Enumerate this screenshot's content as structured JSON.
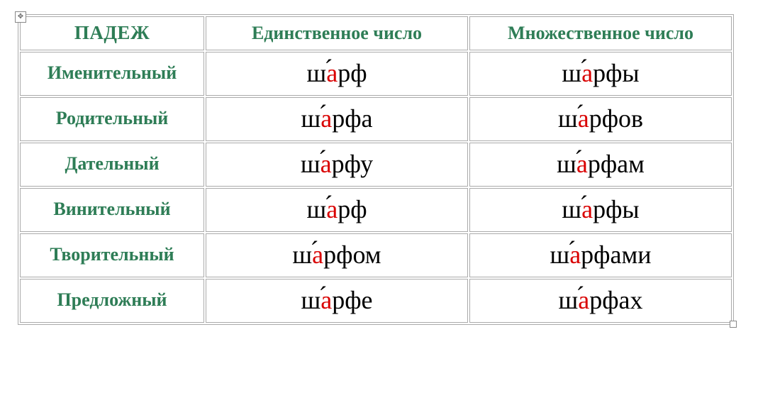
{
  "colors": {
    "header_text": "#2e7d56",
    "stress_letter": "#d90000",
    "word_text": "#000000",
    "border": "#aaaaaa",
    "background": "#ffffff"
  },
  "fonts": {
    "family": "Times New Roman",
    "header_size_pt": 20,
    "case_label_size_pt": 20,
    "word_size_pt": 28
  },
  "headers": {
    "case": "ПАДЕЖ",
    "singular": "Единственное число",
    "plural": "Множественное число"
  },
  "rows": [
    {
      "case": "Именительный",
      "sing": {
        "pre": "ш",
        "stress": "а",
        "post": "рф"
      },
      "plur": {
        "pre": "ш",
        "stress": "а",
        "post": "рфы"
      }
    },
    {
      "case": "Родительный",
      "sing": {
        "pre": "ш",
        "stress": "а",
        "post": "рфа"
      },
      "plur": {
        "pre": "ш",
        "stress": "а",
        "post": "рфов"
      }
    },
    {
      "case": "Дательный",
      "sing": {
        "pre": "ш",
        "stress": "а",
        "post": "рфу"
      },
      "plur": {
        "pre": "ш",
        "stress": "а",
        "post": "рфам"
      }
    },
    {
      "case": "Винительный",
      "sing": {
        "pre": "ш",
        "stress": "а",
        "post": "рф"
      },
      "plur": {
        "pre": "ш",
        "stress": "а",
        "post": "рфы"
      }
    },
    {
      "case": "Творительный",
      "sing": {
        "pre": "ш",
        "stress": "а",
        "post": "рфом"
      },
      "plur": {
        "pre": "ш",
        "stress": "а",
        "post": "рфами"
      }
    },
    {
      "case": "Предложный",
      "sing": {
        "pre": "ш",
        "stress": "а",
        "post": "рфе"
      },
      "plur": {
        "pre": "ш",
        "stress": "а",
        "post": "рфах"
      }
    }
  ]
}
